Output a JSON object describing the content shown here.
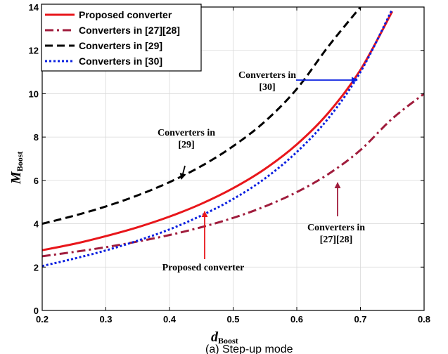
{
  "chart_data": {
    "type": "line",
    "xlabel": "d",
    "xlabel_sub": "Boost",
    "ylabel": "M",
    "ylabel_sub": "Boost",
    "xlim": [
      0.2,
      0.8
    ],
    "ylim": [
      0,
      14
    ],
    "x_ticks": [
      "0.2",
      "0.3",
      "0.4",
      "0.5",
      "0.6",
      "0.7",
      "0.8"
    ],
    "y_ticks": [
      "0",
      "2",
      "4",
      "6",
      "8",
      "10",
      "12",
      "14"
    ],
    "grid": true,
    "legend_position": "top-left",
    "x": [
      0.2,
      0.25,
      0.3,
      0.35,
      0.4,
      0.45,
      0.5,
      0.55,
      0.6,
      0.65,
      0.7,
      0.75,
      0.8
    ],
    "series": [
      {
        "name": "Proposed converter",
        "color": "#e8161b",
        "dash": "solid",
        "values": [
          2.78,
          3.07,
          3.43,
          3.84,
          4.33,
          4.92,
          5.64,
          6.53,
          7.66,
          9.13,
          11.1,
          13.8,
          null
        ]
      },
      {
        "name": "Converters in [27][28]",
        "color": "#a01c3c",
        "dash": "dashdot",
        "values": [
          2.5,
          2.7,
          2.92,
          3.18,
          3.48,
          3.84,
          4.27,
          4.8,
          5.46,
          6.3,
          7.4,
          8.85,
          10.0
        ]
      },
      {
        "name": "Converters in [29]",
        "color": "#000000",
        "dash": "dash",
        "values": [
          4.0,
          4.37,
          4.8,
          5.31,
          5.92,
          6.66,
          7.58,
          8.72,
          10.22,
          12.2,
          14.0,
          null,
          null
        ]
      },
      {
        "name": "Converters in [30]",
        "color": "#0a1fe0",
        "dash": "dot",
        "values": [
          2.05,
          2.39,
          2.77,
          3.22,
          3.74,
          4.38,
          5.14,
          6.09,
          7.31,
          8.88,
          11.0,
          13.9,
          null
        ]
      }
    ],
    "annotations": [
      {
        "text": [
          "Converters in",
          "[30]"
        ]
      },
      {
        "text": [
          "Converters in",
          "[29]"
        ]
      },
      {
        "text": [
          "Converters in",
          "[27][28]"
        ]
      },
      {
        "text": [
          "Proposed converter"
        ]
      }
    ],
    "caption": "(a) Step-up mode"
  }
}
